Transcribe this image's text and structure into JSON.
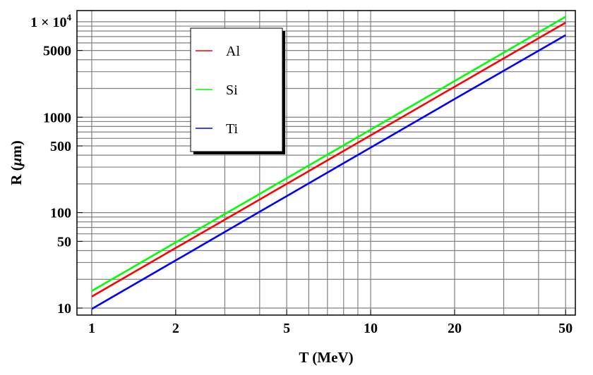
{
  "chart_data": {
    "type": "line",
    "title": "",
    "xlabel": "T (MeV)",
    "ylabel_prefix": "R (",
    "ylabel_unit": "μ",
    "ylabel_suffix": "m)",
    "x_scale": "log",
    "y_scale": "log",
    "xlim": [
      0.885,
      54.2
    ],
    "ylim": [
      8.44,
      13100
    ],
    "grid": true,
    "legend_position": "top-left",
    "x_ticks": [
      1,
      2,
      5,
      10,
      20,
      50
    ],
    "x_tick_labels": [
      "1",
      "2",
      "5",
      "10",
      "20",
      "50"
    ],
    "y_ticks": [
      10,
      50,
      100,
      500,
      1000,
      5000
    ],
    "y_tick_labels": [
      "10",
      "50",
      "100",
      "500",
      "1000",
      "5000"
    ],
    "y_top_tick": {
      "value": 10000,
      "mantissa": "1 × 10",
      "exponent": "4"
    },
    "x": [
      1,
      2,
      5,
      10,
      20,
      50
    ],
    "series": [
      {
        "name": "Al",
        "color": "#ff0000",
        "values": [
          13.2,
          42.6,
          200,
          646,
          2085,
          9800
        ]
      },
      {
        "name": "Si",
        "color": "#00ff00",
        "values": [
          15.1,
          48.7,
          229,
          740,
          2390,
          11270
        ]
      },
      {
        "name": "Ti",
        "color": "#0000ff",
        "values": [
          9.8,
          31.6,
          149,
          480,
          1550,
          7240
        ]
      }
    ]
  }
}
